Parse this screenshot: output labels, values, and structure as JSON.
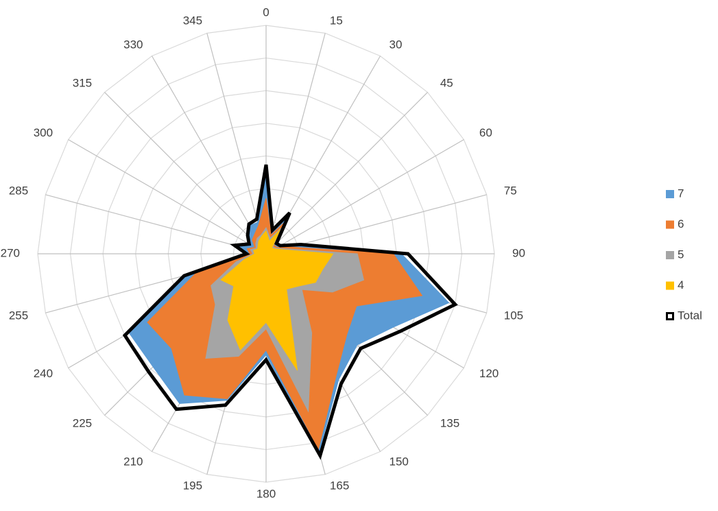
{
  "chart_data": {
    "type": "radar",
    "categories": [
      "0",
      "15",
      "30",
      "45",
      "60",
      "75",
      "90",
      "105",
      "120",
      "135",
      "150",
      "165",
      "180",
      "195",
      "210",
      "225",
      "240",
      "255",
      "270",
      "285",
      "300",
      "315",
      "330",
      "345"
    ],
    "ylim": [
      0,
      7
    ],
    "yticks": [
      0,
      1,
      2,
      3,
      4,
      5,
      6,
      7
    ],
    "grid": true,
    "legend": "right",
    "series": [
      {
        "name": "7",
        "color": "#5b9bd5",
        "kind": "area",
        "values": [
          2.55,
          0.65,
          1.35,
          0.4,
          0.45,
          1.0,
          4.15,
          5.8,
          4.5,
          3.95,
          4.45,
          6.3,
          3.1,
          4.65,
          5.3,
          4.9,
          4.85,
          2.5,
          0.55,
          0.9,
          0.55,
          0.75,
          1.0,
          1.0
        ]
      },
      {
        "name": "6",
        "color": "#ed7d31",
        "kind": "area",
        "values": [
          1.7,
          0.6,
          1.1,
          0.35,
          0.4,
          0.8,
          3.9,
          4.95,
          3.2,
          3.5,
          4.3,
          6.2,
          2.95,
          4.6,
          5.0,
          4.1,
          4.2,
          2.2,
          0.5,
          0.6,
          0.4,
          0.6,
          0.7,
          0.9
        ]
      },
      {
        "name": "5",
        "color": "#a5a5a5",
        "kind": "area",
        "values": [
          0.8,
          0.5,
          0.9,
          0.3,
          0.35,
          0.6,
          2.8,
          3.1,
          2.35,
          1.55,
          2.8,
          5.0,
          2.3,
          3.25,
          3.7,
          2.2,
          1.95,
          0.95,
          0.4,
          0.5,
          0.35,
          0.45,
          0.55,
          0.6
        ]
      },
      {
        "name": "4",
        "color": "#ffc000",
        "kind": "area",
        "values": [
          0.7,
          0.4,
          0.85,
          0.25,
          0.3,
          0.5,
          2.05,
          1.8,
          1.75,
          1.4,
          1.25,
          3.7,
          2.1,
          3.05,
          2.35,
          1.4,
          1.6,
          0.7,
          0.35,
          0.4,
          0.3,
          0.35,
          0.45,
          0.55
        ]
      },
      {
        "name": "Total",
        "color": "#000000",
        "kind": "line",
        "values": [
          2.73,
          0.75,
          1.45,
          0.45,
          0.5,
          1.1,
          4.35,
          6.0,
          4.75,
          4.1,
          4.6,
          6.4,
          3.25,
          4.8,
          5.5,
          5.1,
          5.0,
          2.6,
          0.6,
          1.0,
          0.6,
          0.8,
          1.05,
          1.1
        ]
      }
    ]
  }
}
